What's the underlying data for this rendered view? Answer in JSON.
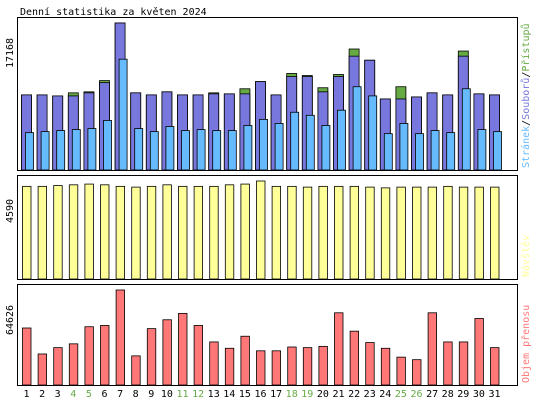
{
  "chart_data": {
    "type": "bar",
    "title": "Denní statistika za květen 2024",
    "categories": [
      "1",
      "2",
      "3",
      "4",
      "5",
      "6",
      "7",
      "8",
      "9",
      "10",
      "11",
      "12",
      "13",
      "14",
      "15",
      "16",
      "17",
      "18",
      "19",
      "20",
      "21",
      "22",
      "23",
      "24",
      "25",
      "26",
      "27",
      "28",
      "29",
      "30",
      "31"
    ],
    "weekend_days": [
      "4",
      "5",
      "11",
      "12",
      "18",
      "19",
      "25",
      "26"
    ],
    "panels": [
      {
        "key": "hits",
        "ymax_label": "17168",
        "ylim": [
          0,
          17168
        ],
        "legend": [
          "Přístupů",
          "Souborů",
          "Stránek"
        ],
        "series": [
          {
            "name": "Přístupů",
            "color": "#66aa44",
            "values": [
              8773,
              8773,
              8654,
              9011,
              9130,
              10440,
              17168,
              9011,
              8773,
              9130,
              8773,
              8773,
              9011,
              8892,
              9487,
              10321,
              8773,
              11273,
              11035,
              9606,
              11154,
              14131,
              12820,
              8297,
              9725,
              8535,
              9011,
              8773,
              13892,
              8892,
              8773
            ]
          },
          {
            "name": "Souborů",
            "color": "#7777dd",
            "values": [
              8773,
              8773,
              8654,
              8654,
              9011,
              10202,
              17168,
              9011,
              8773,
              9130,
              8773,
              8773,
              8892,
              8892,
              8892,
              10321,
              8773,
              10916,
              10916,
              9130,
              10916,
              13296,
              12820,
              8297,
              8297,
              8535,
              9011,
              8773,
              13296,
              8892,
              8773
            ]
          },
          {
            "name": "Stránek",
            "color": "#66bbff",
            "values": [
              4363,
              4482,
              4601,
              4720,
              4839,
              5792,
              12939,
              4839,
              4482,
              5078,
              4601,
              4720,
              4601,
              4601,
              5197,
              5912,
              5435,
              6744,
              6387,
              5197,
              6983,
              9725,
              8654,
              4244,
              5435,
              4244,
              4601,
              4363,
              9487,
              4720,
              4482
            ]
          }
        ]
      },
      {
        "key": "visits",
        "ymax_label": "4590",
        "ylim": [
          0,
          4590
        ],
        "legend": [
          "Návštěv"
        ],
        "series": [
          {
            "name": "Návštěv",
            "color": "#ffff99",
            "values": [
              4339,
              4339,
              4375,
              4411,
              4446,
              4411,
              4339,
              4304,
              4339,
              4411,
              4339,
              4339,
              4339,
              4411,
              4446,
              4590,
              4339,
              4339,
              4304,
              4339,
              4339,
              4339,
              4304,
              4268,
              4304,
              4304,
              4304,
              4339,
              4304,
              4304,
              4304
            ]
          }
        ]
      },
      {
        "key": "kbytes",
        "ymax_label": "64626",
        "ylim": [
          0,
          64626
        ],
        "legend": [
          "Objem přenosu"
        ],
        "series": [
          {
            "name": "Objem přenosu",
            "color": "#ff7777",
            "values": [
              38775,
              21106,
              25418,
              28003,
              39637,
              40499,
              64626,
              19813,
              38344,
              44378,
              48688,
              40499,
              29295,
              24987,
              33172,
              23261,
              23261,
              25849,
              25418,
              26280,
              49120,
              36621,
              28865,
              24987,
              18951,
              17226,
              49120,
              29295,
              29295,
              45240,
              25418
            ]
          }
        ]
      }
    ]
  }
}
